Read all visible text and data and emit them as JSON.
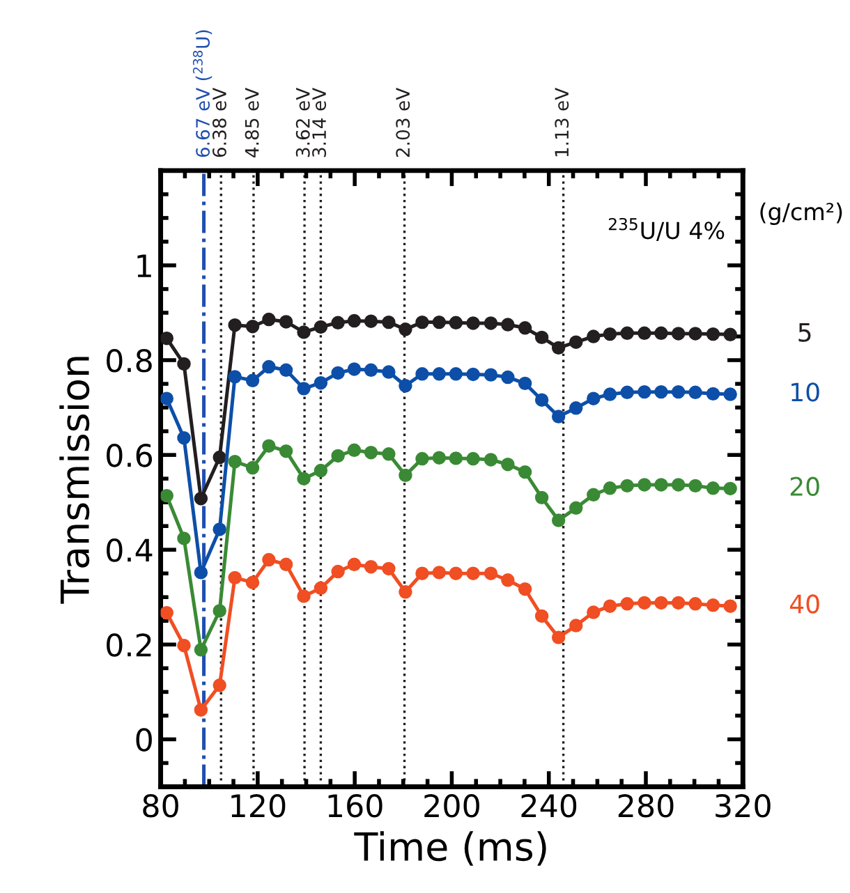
{
  "chart_data": {
    "type": "line",
    "xlabel": "Time (ms)",
    "ylabel": "Transmission",
    "legend_title": "(g/cm²)",
    "x": [
      82.5,
      89.6,
      96.6,
      104.3,
      110.6,
      117.9,
      124.6,
      131.7,
      139.0,
      146.0,
      153.1,
      159.8,
      166.7,
      174.0,
      180.9,
      187.8,
      194.8,
      201.7,
      208.8,
      216.1,
      223.1,
      230.2,
      237.1,
      244.0,
      251.2,
      258.4,
      265.2,
      272.3,
      279.4,
      286.3,
      293.4,
      300.4,
      307.7,
      314.8
    ],
    "series": [
      {
        "name": "5",
        "color": "#231f20",
        "values": [
          0.846,
          0.792,
          0.508,
          0.595,
          0.874,
          0.871,
          0.886,
          0.881,
          0.859,
          0.87,
          0.879,
          0.883,
          0.882,
          0.88,
          0.865,
          0.88,
          0.88,
          0.879,
          0.878,
          0.878,
          0.875,
          0.868,
          0.848,
          0.826,
          0.838,
          0.85,
          0.855,
          0.857,
          0.857,
          0.857,
          0.856,
          0.856,
          0.855,
          0.854
        ]
      },
      {
        "name": "10",
        "color": "#0d4fa8",
        "values": [
          0.719,
          0.636,
          0.352,
          0.443,
          0.765,
          0.757,
          0.786,
          0.779,
          0.74,
          0.752,
          0.773,
          0.781,
          0.779,
          0.775,
          0.746,
          0.771,
          0.771,
          0.771,
          0.77,
          0.769,
          0.764,
          0.751,
          0.716,
          0.681,
          0.699,
          0.719,
          0.728,
          0.732,
          0.733,
          0.733,
          0.733,
          0.732,
          0.729,
          0.728
        ]
      },
      {
        "name": "20",
        "color": "#3a8a35",
        "values": [
          0.514,
          0.424,
          0.189,
          0.271,
          0.586,
          0.573,
          0.619,
          0.608,
          0.55,
          0.567,
          0.598,
          0.61,
          0.605,
          0.602,
          0.557,
          0.592,
          0.594,
          0.593,
          0.592,
          0.59,
          0.58,
          0.564,
          0.51,
          0.462,
          0.488,
          0.516,
          0.53,
          0.535,
          0.537,
          0.537,
          0.537,
          0.535,
          0.53,
          0.529
        ]
      },
      {
        "name": "40",
        "color": "#f04e23",
        "values": [
          0.267,
          0.198,
          0.062,
          0.114,
          0.341,
          0.331,
          0.379,
          0.369,
          0.302,
          0.319,
          0.354,
          0.369,
          0.364,
          0.36,
          0.311,
          0.35,
          0.352,
          0.35,
          0.35,
          0.35,
          0.336,
          0.317,
          0.26,
          0.215,
          0.24,
          0.268,
          0.281,
          0.286,
          0.288,
          0.288,
          0.288,
          0.286,
          0.283,
          0.281
        ]
      }
    ],
    "ref_lines": [
      {
        "axis": "x",
        "value": 97.8,
        "label": "6.67 eV ($^{238}$U)",
        "color": "#1f4fb0",
        "line_style": "dashdot"
      },
      {
        "axis": "x",
        "value": 104.9,
        "label": "6.38 eV",
        "color": "#231f20",
        "line_style": "dotted"
      },
      {
        "axis": "x",
        "value": 118.3,
        "label": "4.85 eV",
        "color": "#231f20",
        "line_style": "dotted"
      },
      {
        "axis": "x",
        "value": 139.3,
        "label": "3.62 eV",
        "color": "#231f20",
        "line_style": "dotted"
      },
      {
        "axis": "x",
        "value": 146.0,
        "label": "3.14 eV",
        "color": "#231f20",
        "line_style": "dotted"
      },
      {
        "axis": "x",
        "value": 180.5,
        "label": "2.03 eV",
        "color": "#231f20",
        "line_style": "dotted"
      },
      {
        "axis": "x",
        "value": 246.0,
        "label": "1.13 eV",
        "color": "#231f20",
        "line_style": "dotted"
      }
    ],
    "annotations": [
      "$^{235}$U/U 4%"
    ],
    "xlim": [
      80,
      320
    ],
    "xticks": [
      80,
      120,
      160,
      200,
      240,
      280,
      320
    ],
    "ylim": [
      -0.1,
      1.2
    ],
    "yticks": [
      0,
      0.2,
      0.4,
      0.6,
      0.8,
      1
    ],
    "grid": false,
    "legend": false,
    "marker": "circle",
    "line_style": "solid"
  }
}
